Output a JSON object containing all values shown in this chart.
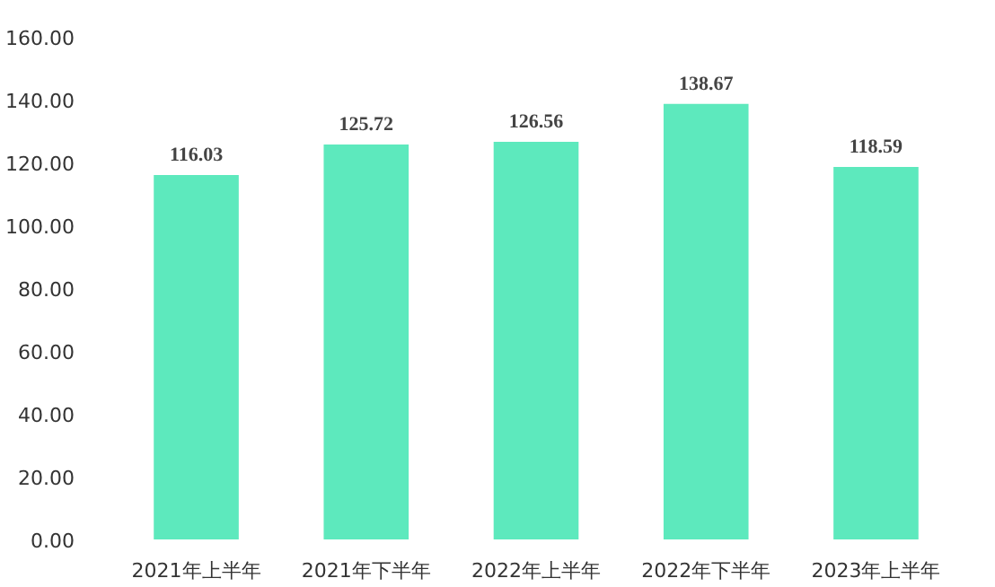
{
  "chart_data": {
    "type": "bar",
    "categories": [
      "2021年上半年",
      "2021年下半年",
      "2022年上半年",
      "2022年下半年",
      "2023年上半年"
    ],
    "values": [
      116.03,
      125.72,
      126.56,
      138.67,
      118.59
    ],
    "color": "#5de9bd",
    "ylim": [
      0,
      160
    ],
    "yticks": [
      {
        "value": 0,
        "label": "0.00"
      },
      {
        "value": 20,
        "label": "20.00"
      },
      {
        "value": 40,
        "label": "40.00"
      },
      {
        "value": 60,
        "label": "60.00"
      },
      {
        "value": 80,
        "label": "80.00"
      },
      {
        "value": 100,
        "label": "100.00"
      },
      {
        "value": 120,
        "label": "120.00"
      },
      {
        "value": 140,
        "label": "140.00"
      },
      {
        "value": 160,
        "label": "160.00"
      }
    ],
    "data_labels": true,
    "grid": false
  }
}
